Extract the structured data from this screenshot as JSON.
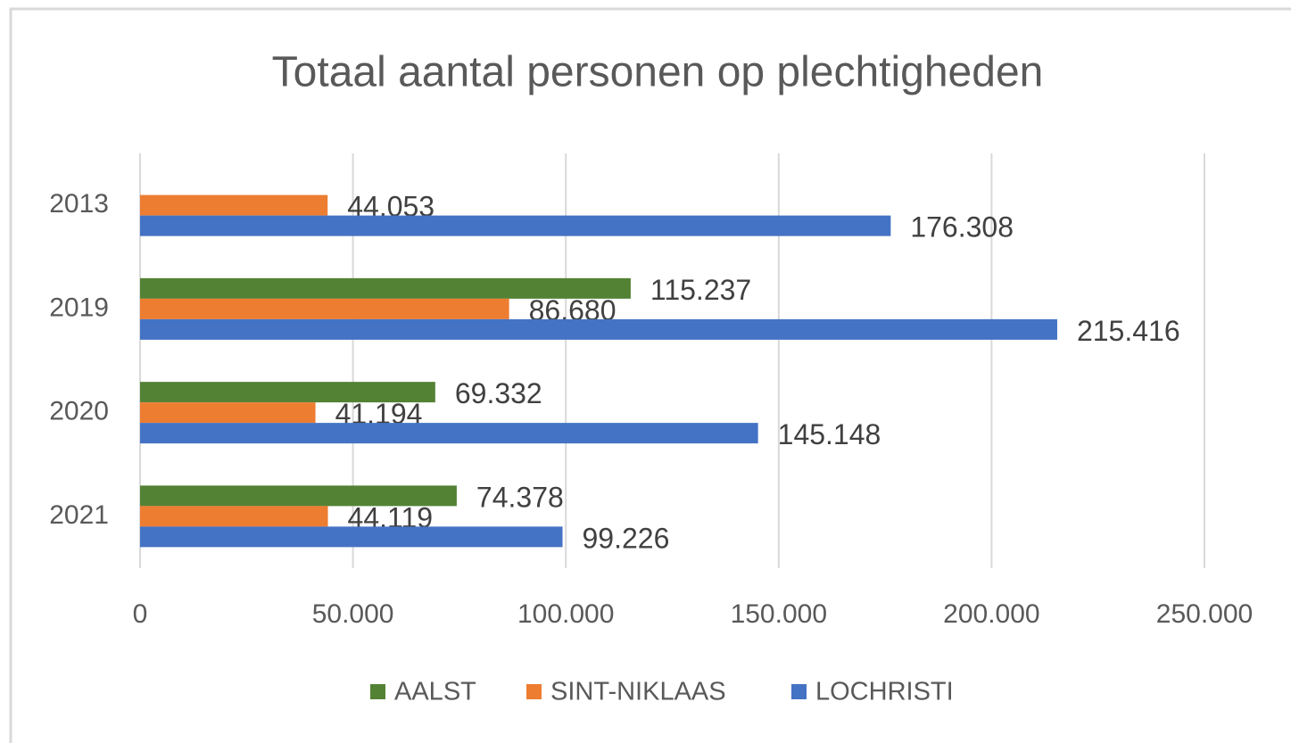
{
  "chart_data": {
    "type": "bar",
    "orientation": "horizontal",
    "title": "Totaal aantal personen op plechtigheden",
    "categories": [
      "2013",
      "2019",
      "2020",
      "2021"
    ],
    "series": [
      {
        "name": "AALST",
        "color": "#548235",
        "values": [
          null,
          115237,
          69332,
          74378
        ],
        "value_labels": [
          null,
          "115.237",
          "69.332",
          "74.378"
        ]
      },
      {
        "name": "SINT-NIKLAAS",
        "color": "#ed7d31",
        "values": [
          44053,
          86680,
          41194,
          44119
        ],
        "value_labels": [
          "44.053",
          "86.680",
          "41.194",
          "44.119"
        ]
      },
      {
        "name": "LOCHRISTI",
        "color": "#4472c4",
        "values": [
          176308,
          215416,
          145148,
          99226
        ],
        "value_labels": [
          "176.308",
          "215.416",
          "145.148",
          "99.226"
        ]
      }
    ],
    "xlim": [
      0,
      250000
    ],
    "xticks": [
      0,
      {
        "value": 50000,
        "label": "50.000"
      },
      {
        "value": 100000,
        "label": "100.000"
      },
      {
        "value": 150000,
        "label": "150.000"
      },
      {
        "value": 200000,
        "label": "200.000"
      },
      {
        "value": 250000,
        "label": "250.000"
      }
    ],
    "grid": true,
    "legend": "bottom"
  }
}
